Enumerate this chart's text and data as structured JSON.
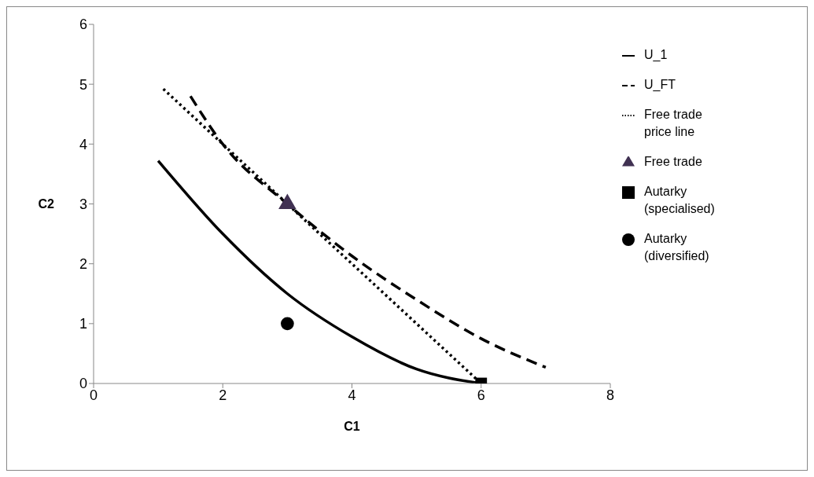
{
  "chart_data": {
    "type": "line",
    "xlabel": "C1",
    "ylabel": "C2",
    "xlim": [
      0,
      8
    ],
    "xticks": [
      0,
      2,
      4,
      6,
      8
    ],
    "ylim": [
      0,
      6
    ],
    "yticks": [
      0,
      1,
      2,
      3,
      4,
      5,
      6
    ],
    "grid": false,
    "legend": "right",
    "series": [
      {
        "name": "U_1",
        "color": "#000000",
        "line_style": "solid",
        "marker": "none",
        "x": [
          1,
          2,
          3,
          4,
          5,
          6
        ],
        "values": [
          3.72,
          2.5,
          1.5,
          0.78,
          0.24,
          0
        ]
      },
      {
        "name": "U_FT",
        "color": "#000000",
        "line_style": "dashed",
        "marker": "none",
        "x": [
          1.5,
          2,
          3,
          4,
          5,
          6,
          7
        ],
        "values": [
          4.8,
          4.0,
          3.0,
          2.13,
          1.4,
          0.75,
          0.27
        ]
      },
      {
        "name": "Free trade price line",
        "color": "#000000",
        "line_style": "dotted",
        "marker": "none",
        "x": [
          1.08,
          6
        ],
        "values": [
          4.92,
          0
        ]
      },
      {
        "name": "Free trade",
        "type": "scatter",
        "color": "#403152",
        "marker": "triangle",
        "x": [
          3
        ],
        "values": [
          3
        ]
      },
      {
        "name": "Autarky (specialised)",
        "type": "scatter",
        "color": "#000000",
        "marker": "square",
        "x": [
          6
        ],
        "values": [
          0
        ]
      },
      {
        "name": "Autarky (diversified)",
        "type": "scatter",
        "color": "#000000",
        "marker": "circle",
        "x": [
          3
        ],
        "values": [
          1
        ]
      }
    ]
  }
}
